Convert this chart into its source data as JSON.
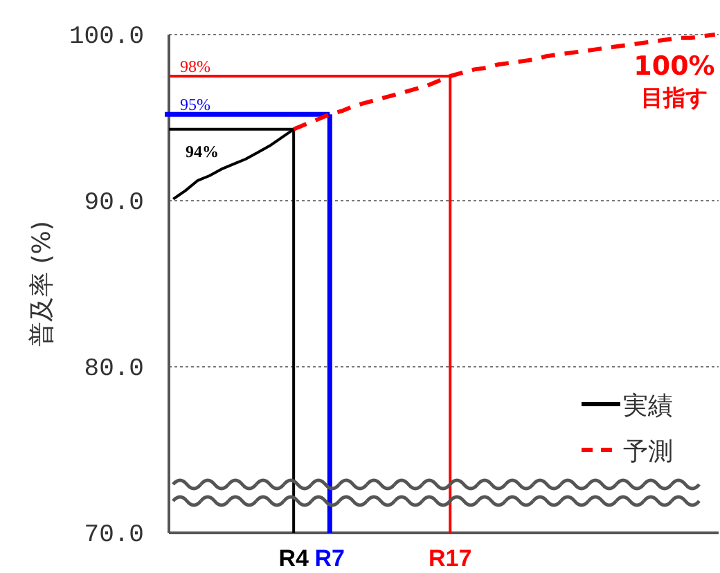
{
  "chart_data": {
    "type": "line",
    "ylabel": "普及率 (%)",
    "categories": [
      null,
      null,
      null,
      null,
      null,
      null,
      null,
      null,
      null,
      null,
      "R4",
      null,
      null,
      "R7",
      null,
      null,
      null,
      null,
      null,
      null,
      null,
      null,
      null,
      "R17",
      null,
      null,
      null,
      null,
      null,
      null,
      null,
      null,
      null,
      null,
      null,
      null,
      null,
      null,
      null,
      null,
      null,
      null,
      null,
      null,
      null,
      null
    ],
    "ylim": [
      70,
      100
    ],
    "yticks": [
      {
        "value": 70,
        "label": "70.0"
      },
      {
        "value": 80,
        "label": "80.0"
      },
      {
        "value": 90,
        "label": "90.0"
      },
      {
        "value": 100,
        "label": "100.0"
      }
    ],
    "grid": "y",
    "legend": "bottom right",
    "series": [
      {
        "name": "実績",
        "color": "#000000",
        "line_style": "solid",
        "values": [
          90.1,
          90.6,
          91.2,
          91.5,
          91.9,
          92.2,
          92.5,
          92.9,
          93.3,
          93.8,
          94.3,
          null,
          null,
          null,
          null,
          null,
          null,
          null,
          null,
          null,
          null,
          null,
          null,
          null,
          null,
          null,
          null,
          null,
          null,
          null,
          null,
          null,
          null,
          null,
          null,
          null,
          null,
          null,
          null,
          null,
          null,
          null,
          null,
          null,
          null,
          null
        ]
      },
      {
        "name": "予測",
        "color": "#ff0000",
        "line_style": "dashed",
        "values": [
          null,
          null,
          null,
          null,
          null,
          null,
          null,
          null,
          null,
          null,
          94.3,
          94.6,
          94.9,
          95.2,
          95.4,
          95.7,
          95.9,
          96.1,
          96.3,
          96.5,
          96.7,
          96.9,
          97.2,
          97.5,
          97.7,
          97.9,
          98.0,
          98.2,
          98.3,
          98.4,
          98.5,
          98.7,
          98.8,
          98.9,
          99.0,
          99.1,
          99.2,
          99.3,
          99.4,
          99.5,
          99.6,
          99.7,
          99.8,
          99.8,
          99.9,
          100
        ]
      }
    ],
    "ref_lines": [
      {
        "axis": "y",
        "value": 94.3,
        "label": "94%",
        "color": "#000000"
      },
      {
        "axis": "x",
        "value": "R4",
        "color": "#000000"
      },
      {
        "axis": "y",
        "value": 95.2,
        "label": "95%",
        "color": "#0000ff"
      },
      {
        "axis": "x",
        "value": "R7",
        "color": "#0000ff"
      },
      {
        "axis": "y",
        "value": 97.5,
        "label": "98%",
        "color": "#ff0000"
      },
      {
        "axis": "x",
        "value": "R17",
        "color": "#ff0000"
      }
    ],
    "annotations": [
      "100%\n目指す"
    ]
  }
}
